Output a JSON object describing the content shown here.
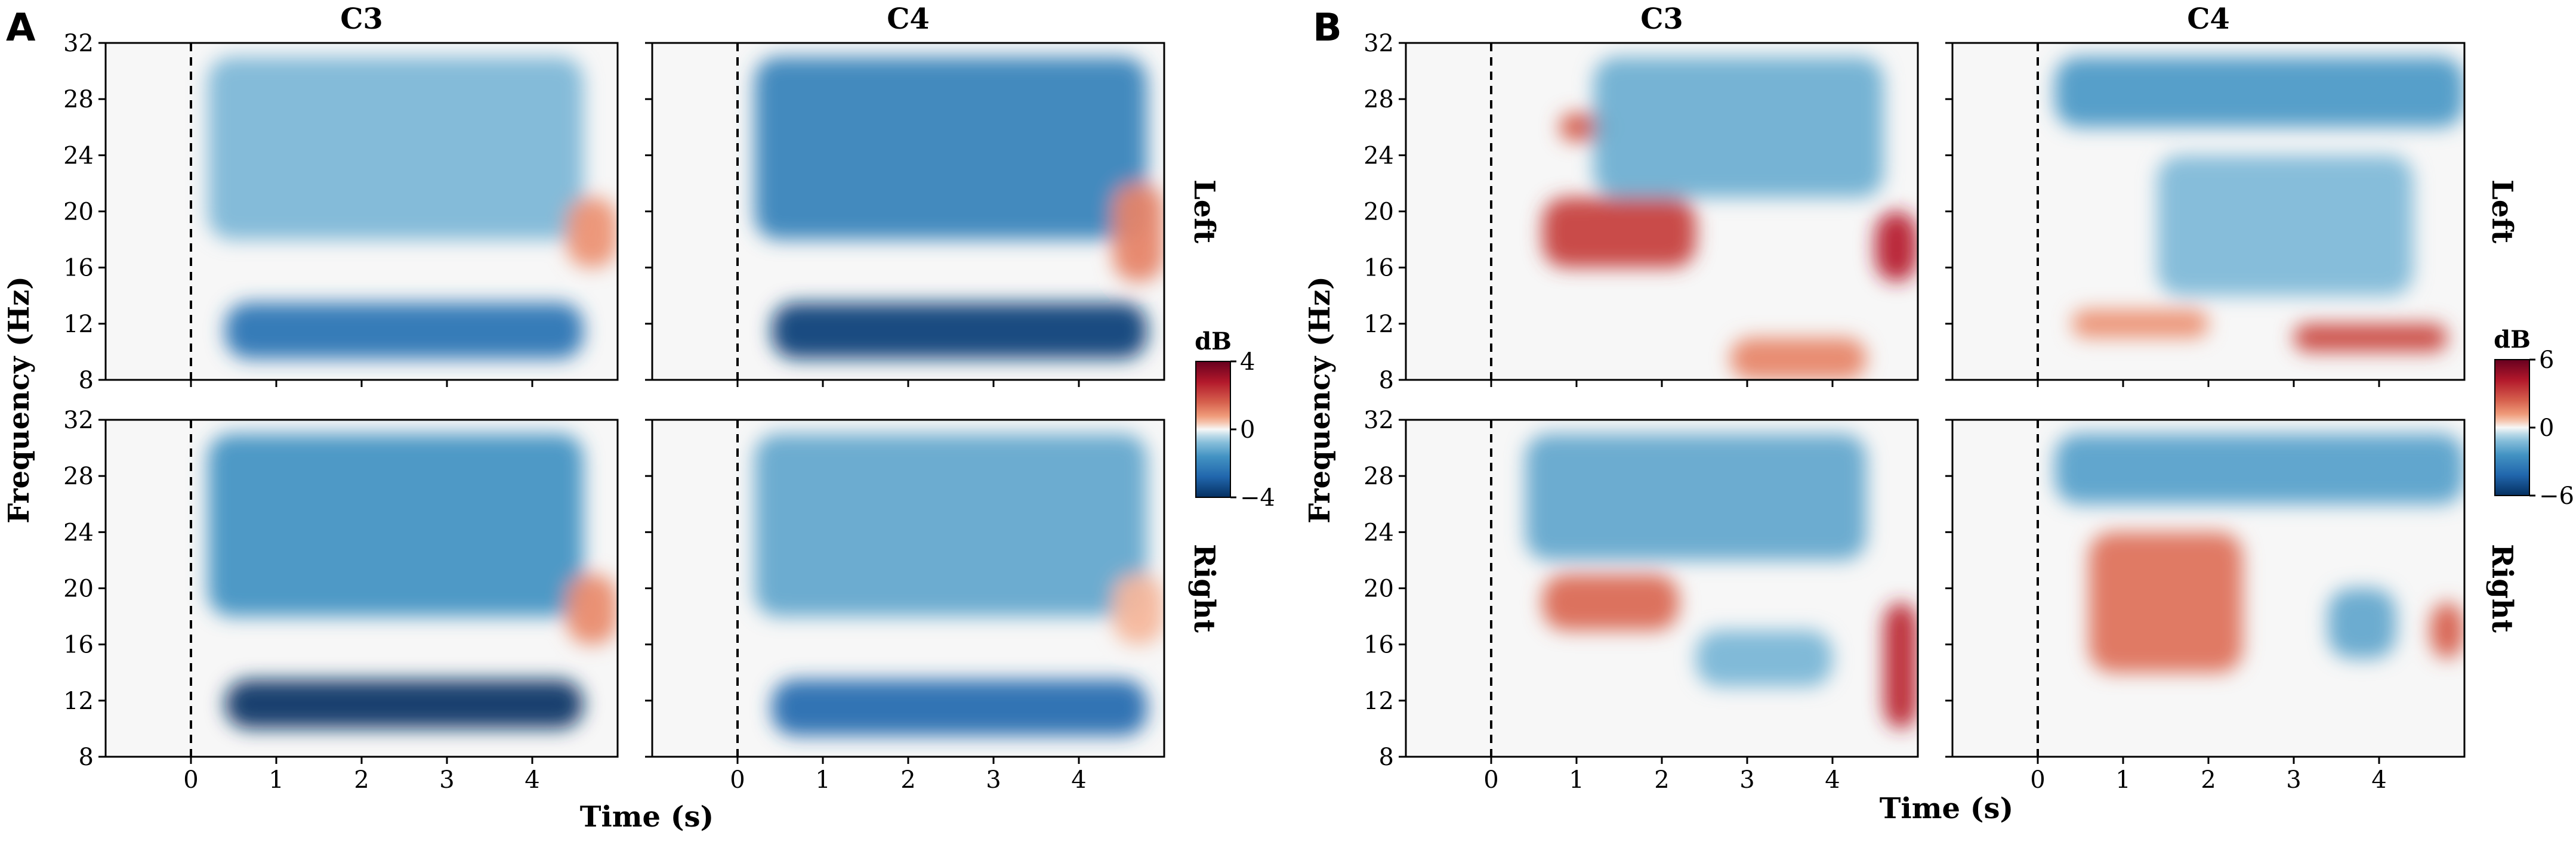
{
  "chart_data": [
    {
      "type": "heatmap",
      "panel_label": "A",
      "column_titles": [
        "C3",
        "C4"
      ],
      "row_labels": [
        "Left",
        "Right"
      ],
      "xlabel": "Time (s)",
      "ylabel": "Frequency (Hz)",
      "xlim": [
        -1,
        5
      ],
      "ylim": [
        8,
        32
      ],
      "xticks": [
        0,
        1,
        2,
        3,
        4
      ],
      "yticks": [
        8,
        12,
        16,
        20,
        24,
        28,
        32
      ],
      "onset_time": 0,
      "colorbar": {
        "title": "dB",
        "range": [
          -4,
          4
        ],
        "ticks": [
          4,
          0,
          -4
        ],
        "colormap": "RdBu_r"
      },
      "colors": {
        "negative": "#053061",
        "zero": "#f7f7f7",
        "positive": "#67001f"
      },
      "cells": [
        {
          "channel": "C3",
          "condition": "Left",
          "features": [
            {
              "t": [
                0.4,
                4.6
              ],
              "f": [
                9.5,
                13.5
              ],
              "db": -2.4
            },
            {
              "t": [
                0.2,
                4.6
              ],
              "f": [
                18,
                31
              ],
              "db": -0.9
            },
            {
              "t": [
                4.4,
                5.0
              ],
              "f": [
                16,
                21
              ],
              "db": 0.9
            }
          ]
        },
        {
          "channel": "C4",
          "condition": "Left",
          "features": [
            {
              "t": [
                0.4,
                4.8
              ],
              "f": [
                9.5,
                13.5
              ],
              "db": -3.6
            },
            {
              "t": [
                0.2,
                4.8
              ],
              "f": [
                18,
                31
              ],
              "db": -2.0
            },
            {
              "t": [
                4.4,
                5.0
              ],
              "f": [
                15,
                22
              ],
              "db": 1.1
            }
          ]
        },
        {
          "channel": "C3",
          "condition": "Right",
          "features": [
            {
              "t": [
                0.4,
                4.6
              ],
              "f": [
                10,
                13.5
              ],
              "db": -3.9
            },
            {
              "t": [
                0.2,
                4.6
              ],
              "f": [
                18,
                31
              ],
              "db": -1.6
            },
            {
              "t": [
                4.4,
                5.0
              ],
              "f": [
                16,
                21
              ],
              "db": 1.0
            }
          ]
        },
        {
          "channel": "C4",
          "condition": "Right",
          "features": [
            {
              "t": [
                0.4,
                4.8
              ],
              "f": [
                9.5,
                13.5
              ],
              "db": -2.6
            },
            {
              "t": [
                0.2,
                4.8
              ],
              "f": [
                18,
                31
              ],
              "db": -1.2
            },
            {
              "t": [
                4.4,
                5.0
              ],
              "f": [
                16,
                21
              ],
              "db": 0.5
            }
          ]
        }
      ]
    },
    {
      "type": "heatmap",
      "panel_label": "B",
      "column_titles": [
        "C3",
        "C4"
      ],
      "row_labels": [
        "Left",
        "Right"
      ],
      "xlabel": "Time (s)",
      "ylabel": "Frequency (Hz)",
      "xlim": [
        -1,
        5
      ],
      "ylim": [
        8,
        32
      ],
      "xticks": [
        0,
        1,
        2,
        3,
        4
      ],
      "yticks": [
        8,
        12,
        16,
        20,
        24,
        28,
        32
      ],
      "onset_time": 0,
      "colorbar": {
        "title": "dB",
        "range": [
          -6,
          6
        ],
        "ticks": [
          6,
          0,
          -6
        ],
        "colormap": "RdBu_r"
      },
      "colors": {
        "negative": "#053061",
        "zero": "#f7f7f7",
        "positive": "#67001f"
      },
      "cells": [
        {
          "channel": "C3",
          "condition": "Left",
          "features": [
            {
              "t": [
                0.6,
                2.4
              ],
              "f": [
                16,
                21
              ],
              "db": 3.2
            },
            {
              "t": [
                0.8,
                1.4
              ],
              "f": [
                25,
                27
              ],
              "db": 2.5
            },
            {
              "t": [
                4.5,
                5.0
              ],
              "f": [
                15,
                20
              ],
              "db": 4.0
            },
            {
              "t": [
                2.8,
                4.4
              ],
              "f": [
                8,
                11
              ],
              "db": 1.6
            },
            {
              "t": [
                1.2,
                4.6
              ],
              "f": [
                21,
                31
              ],
              "db": -1.6
            }
          ]
        },
        {
          "channel": "C4",
          "condition": "Left",
          "features": [
            {
              "t": [
                0.2,
                5.0
              ],
              "f": [
                26,
                31
              ],
              "db": -2.2
            },
            {
              "t": [
                3.0,
                4.8
              ],
              "f": [
                10,
                12
              ],
              "db": 3.0
            },
            {
              "t": [
                0.4,
                2.0
              ],
              "f": [
                11,
                13
              ],
              "db": 1.4
            },
            {
              "t": [
                1.4,
                4.4
              ],
              "f": [
                14,
                24
              ],
              "db": -1.3
            }
          ]
        },
        {
          "channel": "C3",
          "condition": "Right",
          "features": [
            {
              "t": [
                0.6,
                2.2
              ],
              "f": [
                17,
                21
              ],
              "db": 2.2
            },
            {
              "t": [
                4.6,
                5.0
              ],
              "f": [
                10,
                19
              ],
              "db": 3.8
            },
            {
              "t": [
                0.4,
                4.4
              ],
              "f": [
                22,
                31
              ],
              "db": -1.8
            },
            {
              "t": [
                2.4,
                4.0
              ],
              "f": [
                13,
                17
              ],
              "db": -1.4
            }
          ]
        },
        {
          "channel": "C4",
          "condition": "Right",
          "features": [
            {
              "t": [
                0.6,
                2.4
              ],
              "f": [
                14,
                24
              ],
              "db": 2.0
            },
            {
              "t": [
                0.2,
                5.0
              ],
              "f": [
                26,
                31
              ],
              "db": -2.0
            },
            {
              "t": [
                4.6,
                5.0
              ],
              "f": [
                15,
                19
              ],
              "db": 2.4
            },
            {
              "t": [
                3.4,
                4.2
              ],
              "f": [
                15,
                20
              ],
              "db": -1.8
            }
          ]
        }
      ]
    }
  ]
}
